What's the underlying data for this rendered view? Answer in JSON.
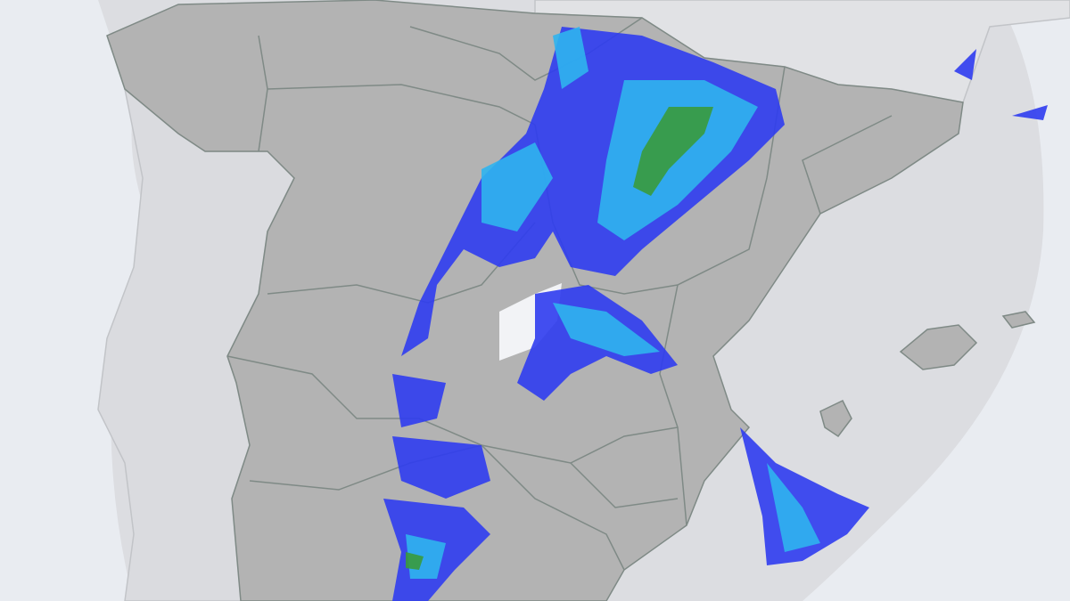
{
  "map": {
    "colors": {
      "background": "#e9ecf1",
      "radar_coverage": "#dcdde1",
      "land": "#b3b3b3",
      "border": "#7f8a86",
      "no_data": "#f2f3f6",
      "precip_light": "#2f3cf0",
      "precip_moderate": "#2fb4ee",
      "precip_heavy": "#3a9a3c"
    },
    "layers": [
      "radar-coverage",
      "land",
      "region-borders",
      "precipitation"
    ]
  }
}
